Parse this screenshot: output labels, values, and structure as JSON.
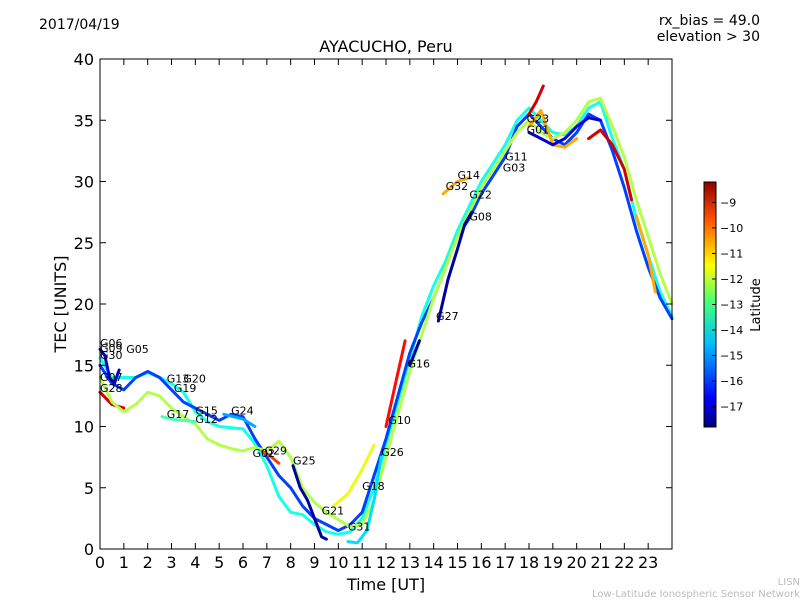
{
  "header": {
    "date": "2017/04/19",
    "info_line1": "rx_bias = 49.0",
    "info_line2": "elevation > 30"
  },
  "footer": {
    "brand": "LISN",
    "network": "Low-Latitude Ionospheric Sensor Network"
  },
  "chart_data": {
    "type": "line",
    "title": "AYACUCHO, Peru",
    "xlabel": "Time [UT]",
    "ylabel": "TEC [UNITS]",
    "xlim": [
      0,
      24
    ],
    "ylim": [
      0,
      40
    ],
    "x_ticks": [
      0,
      1,
      2,
      3,
      4,
      5,
      6,
      7,
      8,
      9,
      10,
      11,
      12,
      13,
      14,
      15,
      16,
      17,
      18,
      19,
      20,
      21,
      22,
      23
    ],
    "y_ticks": [
      0,
      5,
      10,
      15,
      20,
      25,
      30,
      35,
      40
    ],
    "grid": false,
    "colorbar": {
      "label": "Latitude",
      "range": [
        -17.8,
        -8.2
      ],
      "ticks": [
        -9,
        -10,
        -11,
        -12,
        -13,
        -14,
        -15,
        -16,
        -17
      ],
      "colors": [
        "#00007f",
        "#0000ff",
        "#007fff",
        "#00ffff",
        "#7fff7f",
        "#ffff00",
        "#ff7f00",
        "#ff0000",
        "#7f0000"
      ]
    },
    "satellite_labels": [
      {
        "name": "G06",
        "x": 0.0,
        "y": 16.5
      },
      {
        "name": "G09",
        "x": 0.0,
        "y": 16.1
      },
      {
        "name": "G30",
        "x": 0.0,
        "y": 15.5
      },
      {
        "name": "G05",
        "x": 1.1,
        "y": 16.0
      },
      {
        "name": "G07",
        "x": 0.0,
        "y": 13.7
      },
      {
        "name": "G28",
        "x": 0.0,
        "y": 12.8
      },
      {
        "name": "G13",
        "x": 2.8,
        "y": 13.6
      },
      {
        "name": "G20",
        "x": 3.5,
        "y": 13.6
      },
      {
        "name": "G19",
        "x": 3.1,
        "y": 12.8
      },
      {
        "name": "G17",
        "x": 2.8,
        "y": 10.7
      },
      {
        "name": "G15",
        "x": 4.0,
        "y": 11.0
      },
      {
        "name": "G12",
        "x": 4.0,
        "y": 10.3
      },
      {
        "name": "G24",
        "x": 5.5,
        "y": 11.0
      },
      {
        "name": "G02",
        "x": 6.4,
        "y": 7.5
      },
      {
        "name": "G29",
        "x": 6.9,
        "y": 7.7
      },
      {
        "name": "G25",
        "x": 8.1,
        "y": 6.9
      },
      {
        "name": "G21",
        "x": 9.3,
        "y": 2.8
      },
      {
        "name": "G31",
        "x": 10.4,
        "y": 1.5
      },
      {
        "name": "G18",
        "x": 11.0,
        "y": 4.8
      },
      {
        "name": "G26",
        "x": 11.8,
        "y": 7.6
      },
      {
        "name": "G10",
        "x": 12.1,
        "y": 10.2
      },
      {
        "name": "G16",
        "x": 12.9,
        "y": 14.8
      },
      {
        "name": "G27",
        "x": 14.1,
        "y": 18.7
      },
      {
        "name": "G32",
        "x": 14.5,
        "y": 29.3
      },
      {
        "name": "G14",
        "x": 15.0,
        "y": 30.2
      },
      {
        "name": "G22",
        "x": 15.5,
        "y": 28.6
      },
      {
        "name": "G08",
        "x": 15.5,
        "y": 26.8
      },
      {
        "name": "G11",
        "x": 17.0,
        "y": 31.7
      },
      {
        "name": "G03",
        "x": 16.9,
        "y": 30.8
      },
      {
        "name": "G23",
        "x": 17.9,
        "y": 34.8
      },
      {
        "name": "G01",
        "x": 17.9,
        "y": 33.9
      }
    ],
    "series": [
      {
        "lat": -9,
        "points": [
          [
            0,
            12.8
          ],
          [
            0.5,
            11.8
          ],
          [
            1,
            11.5
          ]
        ]
      },
      {
        "lat": -14,
        "points": [
          [
            0,
            15.6
          ],
          [
            0.5,
            14.0
          ],
          [
            1.5,
            14.0
          ],
          [
            2,
            14.4
          ],
          [
            2.5,
            14.0
          ],
          [
            3,
            13.5
          ],
          [
            3.5,
            12.8
          ],
          [
            4,
            11.2
          ],
          [
            4.5,
            10.4
          ],
          [
            5,
            10.0
          ],
          [
            5.5,
            9.9
          ],
          [
            6,
            9.8
          ],
          [
            6.5,
            8.6
          ],
          [
            7,
            6.8
          ],
          [
            7.5,
            4.3
          ],
          [
            8,
            3.0
          ],
          [
            8.5,
            2.8
          ],
          [
            9,
            2.0
          ],
          [
            9.5,
            1.4
          ],
          [
            10,
            1.2
          ],
          [
            10.5,
            1.4
          ],
          [
            11,
            2.5
          ],
          [
            11.5,
            5.0
          ],
          [
            12,
            8.5
          ],
          [
            12.5,
            12.0
          ],
          [
            13,
            15.5
          ],
          [
            13.5,
            19.0
          ],
          [
            14,
            21.5
          ],
          [
            14.5,
            23.5
          ],
          [
            15,
            26.0
          ],
          [
            15.5,
            28.0
          ],
          [
            16,
            30.0
          ],
          [
            16.5,
            31.5
          ],
          [
            17,
            33.0
          ],
          [
            17.5,
            35.0
          ],
          [
            18,
            36.0
          ],
          [
            18.5,
            35.0
          ],
          [
            19,
            34.0
          ],
          [
            19.5,
            33.8
          ],
          [
            20,
            34.5
          ],
          [
            20.5,
            36.0
          ],
          [
            21,
            36.5
          ],
          [
            21.5,
            33.5
          ],
          [
            22,
            31.0
          ],
          [
            22.5,
            27.0
          ],
          [
            23,
            24.0
          ],
          [
            23.5,
            21.0
          ],
          [
            24,
            19.0
          ]
        ]
      },
      {
        "lat": -16,
        "points": [
          [
            0,
            15.0
          ],
          [
            0.5,
            13.5
          ],
          [
            1,
            13.0
          ],
          [
            1.5,
            14.0
          ],
          [
            2,
            14.5
          ],
          [
            2.5,
            14.0
          ],
          [
            3,
            13.0
          ],
          [
            3.5,
            12.0
          ],
          [
            4,
            11.5
          ],
          [
            4.5,
            11.0
          ],
          [
            5,
            10.5
          ],
          [
            5.5,
            11.0
          ],
          [
            6,
            10.8
          ],
          [
            6.5,
            9.0
          ],
          [
            7,
            7.5
          ],
          [
            7.5,
            6.0
          ],
          [
            8,
            5.0
          ],
          [
            8.5,
            3.5
          ],
          [
            9,
            2.5
          ],
          [
            9.5,
            2.0
          ],
          [
            10,
            1.5
          ],
          [
            10.5,
            2.0
          ],
          [
            11,
            3.0
          ],
          [
            11.5,
            6.0
          ],
          [
            12,
            9.0
          ],
          [
            12.5,
            12.5
          ],
          [
            13,
            16.0
          ],
          [
            13.5,
            18.5
          ],
          [
            14,
            20.5
          ],
          [
            14.5,
            23.0
          ],
          [
            15,
            25.5
          ],
          [
            15.5,
            27.0
          ],
          [
            16,
            29.0
          ],
          [
            16.5,
            30.5
          ],
          [
            17,
            32.0
          ],
          [
            17.5,
            34.5
          ],
          [
            18,
            35.5
          ],
          [
            18.5,
            34.5
          ],
          [
            19,
            33.5
          ],
          [
            19.5,
            33.0
          ],
          [
            20,
            34.0
          ],
          [
            20.5,
            35.5
          ],
          [
            21,
            35.0
          ],
          [
            21.5,
            32.5
          ],
          [
            22,
            29.5
          ],
          [
            22.5,
            26.0
          ],
          [
            23,
            23.0
          ],
          [
            23.5,
            20.5
          ],
          [
            24,
            18.8
          ]
        ]
      },
      {
        "lat": -12.5,
        "points": [
          [
            0,
            14.0
          ],
          [
            0.5,
            12.0
          ],
          [
            1,
            11.2
          ],
          [
            1.5,
            11.8
          ],
          [
            2,
            12.8
          ],
          [
            2.5,
            12.5
          ],
          [
            3,
            11.5
          ],
          [
            3.5,
            10.8
          ],
          [
            4,
            10.2
          ],
          [
            4.5,
            9.0
          ],
          [
            5,
            8.5
          ],
          [
            5.5,
            8.2
          ],
          [
            6,
            8.0
          ],
          [
            6.5,
            8.3
          ],
          [
            7,
            8.0
          ],
          [
            7.5,
            8.8
          ],
          [
            8,
            7.5
          ],
          [
            8.5,
            5.0
          ],
          [
            9,
            3.8
          ],
          [
            9.5,
            3.0
          ],
          [
            10,
            2.4
          ],
          [
            10.5,
            1.8
          ],
          [
            11,
            2.0
          ],
          [
            11.5,
            4.0
          ],
          [
            12,
            7.5
          ],
          [
            12.5,
            11.0
          ],
          [
            13,
            14.5
          ],
          [
            13.5,
            17.5
          ],
          [
            14,
            20.5
          ],
          [
            14.5,
            23.0
          ],
          [
            15,
            25.5
          ],
          [
            15.5,
            27.5
          ],
          [
            16,
            29.5
          ],
          [
            16.5,
            31.0
          ],
          [
            17,
            32.5
          ],
          [
            17.5,
            34.0
          ],
          [
            18,
            35.0
          ],
          [
            18.5,
            34.0
          ],
          [
            19,
            33.5
          ],
          [
            19.5,
            34.0
          ],
          [
            20,
            35.0
          ],
          [
            20.5,
            36.5
          ],
          [
            21,
            36.8
          ],
          [
            21.5,
            34.5
          ],
          [
            22,
            32.0
          ],
          [
            22.5,
            28.5
          ],
          [
            23,
            25.5
          ],
          [
            23.5,
            22.5
          ],
          [
            24,
            20.0
          ]
        ]
      },
      {
        "lat": -17,
        "points": [
          [
            0,
            16.3
          ],
          [
            0.2,
            15.8
          ],
          [
            0.4,
            14.0
          ],
          [
            0.6,
            13.5
          ],
          [
            0.8,
            14.6
          ]
        ]
      },
      {
        "lat": -13.5,
        "points": [
          [
            2.6,
            10.8
          ],
          [
            3,
            10.6
          ],
          [
            3.5,
            10.5
          ],
          [
            4,
            10.4
          ]
        ]
      },
      {
        "lat": -10,
        "points": [
          [
            6.8,
            8.0
          ],
          [
            7.2,
            7.5
          ],
          [
            7.5,
            7.0
          ]
        ]
      },
      {
        "lat": -17.5,
        "points": [
          [
            8.1,
            6.8
          ],
          [
            8.4,
            5.0
          ],
          [
            8.7,
            4.0
          ],
          [
            9,
            2.5
          ],
          [
            9.3,
            1.0
          ],
          [
            9.5,
            0.8
          ]
        ]
      },
      {
        "lat": -15,
        "points": [
          [
            5.2,
            11.0
          ],
          [
            5.6,
            10.8
          ],
          [
            6,
            10.6
          ],
          [
            6.5,
            10.0
          ]
        ]
      },
      {
        "lat": -17.5,
        "points": [
          [
            14.2,
            18.6
          ],
          [
            14.6,
            22.0
          ],
          [
            15,
            24.5
          ],
          [
            15.3,
            26.5
          ],
          [
            15.6,
            27.5
          ]
        ]
      },
      {
        "lat": -9.5,
        "points": [
          [
            12.0,
            10.0
          ],
          [
            12.4,
            13.5
          ],
          [
            12.8,
            17.0
          ]
        ]
      },
      {
        "lat": -17.5,
        "points": [
          [
            13.0,
            15.0
          ],
          [
            13.4,
            17.0
          ]
        ]
      },
      {
        "lat": -11,
        "points": [
          [
            14.4,
            29.0
          ],
          [
            15,
            30.0
          ],
          [
            15.5,
            30.3
          ]
        ]
      },
      {
        "lat": -9,
        "points": [
          [
            18.0,
            35.5
          ],
          [
            18.3,
            36.5
          ],
          [
            18.6,
            37.8
          ]
        ]
      },
      {
        "lat": -11,
        "points": [
          [
            18.0,
            34.5
          ],
          [
            18.5,
            35.8
          ],
          [
            19,
            33.0
          ],
          [
            19.5,
            32.8
          ],
          [
            20,
            33.5
          ]
        ]
      },
      {
        "lat": -9,
        "points": [
          [
            20.5,
            33.5
          ],
          [
            21,
            34.2
          ],
          [
            21.5,
            33.0
          ],
          [
            22,
            31.0
          ],
          [
            22.3,
            28.5
          ]
        ]
      },
      {
        "lat": -11,
        "points": [
          [
            22.5,
            27.2
          ],
          [
            23,
            24.0
          ],
          [
            23.3,
            21.0
          ]
        ]
      },
      {
        "lat": -17,
        "points": [
          [
            18.0,
            34.0
          ],
          [
            18.5,
            33.5
          ],
          [
            19,
            33.0
          ],
          [
            19.5,
            33.5
          ],
          [
            20,
            34.5
          ],
          [
            20.5,
            35.2
          ],
          [
            21,
            35.0
          ]
        ]
      },
      {
        "lat": -14.5,
        "points": [
          [
            10.4,
            0.6
          ],
          [
            10.8,
            0.5
          ],
          [
            11.2,
            1.5
          ],
          [
            11.5,
            4.0
          ],
          [
            11.8,
            7.5
          ]
        ]
      },
      {
        "lat": -12,
        "points": [
          [
            9.8,
            3.5
          ],
          [
            10.4,
            4.5
          ],
          [
            11,
            6.5
          ],
          [
            11.5,
            8.5
          ]
        ]
      }
    ]
  }
}
